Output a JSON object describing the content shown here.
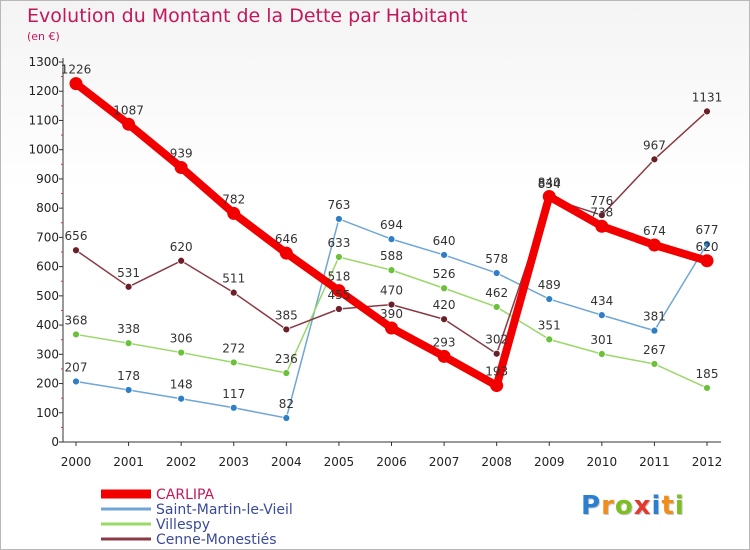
{
  "title": "Evolution du Montant de la Dette par Habitant",
  "subtitle": "(en €)",
  "logo": {
    "text": "Proxiti",
    "colors": [
      "#2a7fd1",
      "#f08c1c",
      "#7bbf24",
      "#e23a30",
      "#2a7fd1",
      "#f08c1c",
      "#7bbf24"
    ]
  },
  "chart_data": {
    "type": "line",
    "x": [
      "2000",
      "2001",
      "2002",
      "2003",
      "2004",
      "2005",
      "2006",
      "2007",
      "2008",
      "2009",
      "2010",
      "2011",
      "2012"
    ],
    "yticks": [
      0,
      100,
      200,
      300,
      400,
      500,
      600,
      700,
      800,
      900,
      1000,
      1100,
      1200,
      1300
    ],
    "ylim": [
      0,
      1300
    ],
    "grid": false,
    "legend_position": "bottom-left",
    "series": [
      {
        "name": "Saint-Martin-le-Vieil",
        "color": "#6fa6d6",
        "marker": "#2f7fc7",
        "values": [
          207,
          178,
          148,
          117,
          82,
          763,
          694,
          640,
          578,
          489,
          434,
          381,
          677
        ]
      },
      {
        "name": "Villespy",
        "color": "#9ad86a",
        "marker": "#6cc13a",
        "values": [
          368,
          338,
          306,
          272,
          236,
          633,
          588,
          526,
          462,
          351,
          301,
          267,
          185
        ]
      },
      {
        "name": "Cenne-Monestiés",
        "color": "#8a3a44",
        "marker": "#6b1f28",
        "values": [
          656,
          531,
          620,
          511,
          385,
          455,
          470,
          420,
          302,
          834,
          776,
          967,
          1131
        ]
      },
      {
        "name": "CARLIPA",
        "color": "#f20000",
        "marker": "#f20000",
        "values": [
          1226,
          1087,
          939,
          782,
          646,
          518,
          390,
          293,
          193,
          840,
          738,
          674,
          620
        ]
      }
    ],
    "legend_order": [
      "CARLIPA",
      "Saint-Martin-le-Vieil",
      "Villespy",
      "Cenne-Monestiés"
    ]
  }
}
